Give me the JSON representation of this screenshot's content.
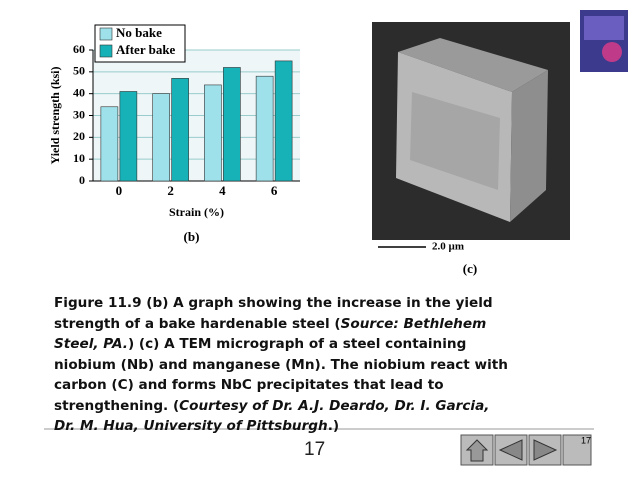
{
  "chart_data": {
    "type": "bar",
    "panel_label": "(b)",
    "x_label": "Strain (%)",
    "y_label": "Yield strength (ksi)",
    "categories": [
      "0",
      "2",
      "4",
      "6"
    ],
    "series": [
      {
        "name": "No bake",
        "color": "#9fe1ea",
        "values": [
          34,
          40,
          44,
          48
        ]
      },
      {
        "name": "After bake",
        "color": "#17b2b8",
        "values": [
          41,
          47,
          52,
          55
        ]
      }
    ],
    "ylim": [
      0,
      60
    ],
    "yticks": [
      0,
      10,
      20,
      30,
      40,
      50,
      60
    ],
    "grid": true,
    "legend": "upper left"
  },
  "micrograph": {
    "scale_label": "2.0 µm",
    "panel_label": "(c)"
  },
  "caption": {
    "lines": [
      [
        {
          "text": "Figure 11.9 (b) A graph showing the increase in the yield",
          "italic": false
        }
      ],
      [
        {
          "text": "strength of a bake hardenable steel (",
          "italic": false
        },
        {
          "text": "Source: Bethlehem",
          "italic": true
        }
      ],
      [
        {
          "text": "Steel, PA.",
          "italic": true
        },
        {
          "text": ") (c) A TEM micrograph of a steel containing",
          "italic": false
        }
      ],
      [
        {
          "text": "niobium (Nb) and manganese (Mn). The niobium react with",
          "italic": false
        }
      ],
      [
        {
          "text": "carbon (C) and forms NbC precipitates that lead to",
          "italic": false
        }
      ],
      [
        {
          "text": "strengthening. (",
          "italic": false
        },
        {
          "text": "Courtesy of Dr. A.J. Deardo, Dr. I. Garcia,",
          "italic": true
        }
      ],
      [
        {
          "text": "Dr. M. Hua, University of Pittsburgh",
          "italic": true
        },
        {
          "text": ".)",
          "italic": false
        }
      ]
    ]
  },
  "page_number": "17",
  "nav_page": "17"
}
